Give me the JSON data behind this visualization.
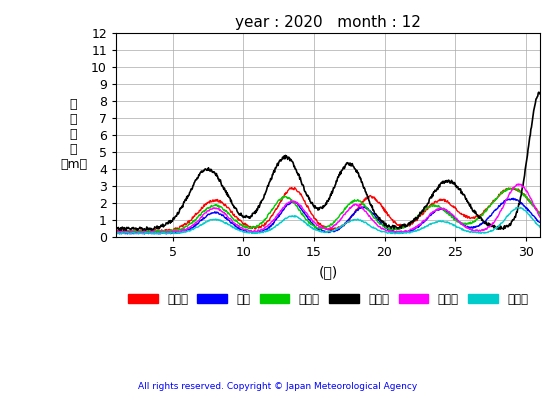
{
  "title": "year : 2020   month : 12",
  "xlabel": "(日)",
  "ylabel": "有\n義\n波\n高\n（m）",
  "xlim": [
    1,
    31
  ],
  "ylim": [
    0,
    12
  ],
  "yticks": [
    0,
    1,
    2,
    3,
    4,
    5,
    6,
    7,
    8,
    9,
    10,
    11,
    12
  ],
  "xticks": [
    5,
    10,
    15,
    20,
    25,
    30
  ],
  "legend_labels": [
    "上ノ国",
    "唐桑",
    "石廠崎",
    "経ヶ岸",
    "生月島",
    "屋久島"
  ],
  "legend_colors": [
    "#ff0000",
    "#0000ff",
    "#00cc00",
    "#000000",
    "#ff00ff",
    "#00cccc"
  ],
  "copyright": "All rights reserved. Copyright © Japan Meteorological Agency",
  "background_color": "#ffffff",
  "grid_color": "#aaaaaa"
}
